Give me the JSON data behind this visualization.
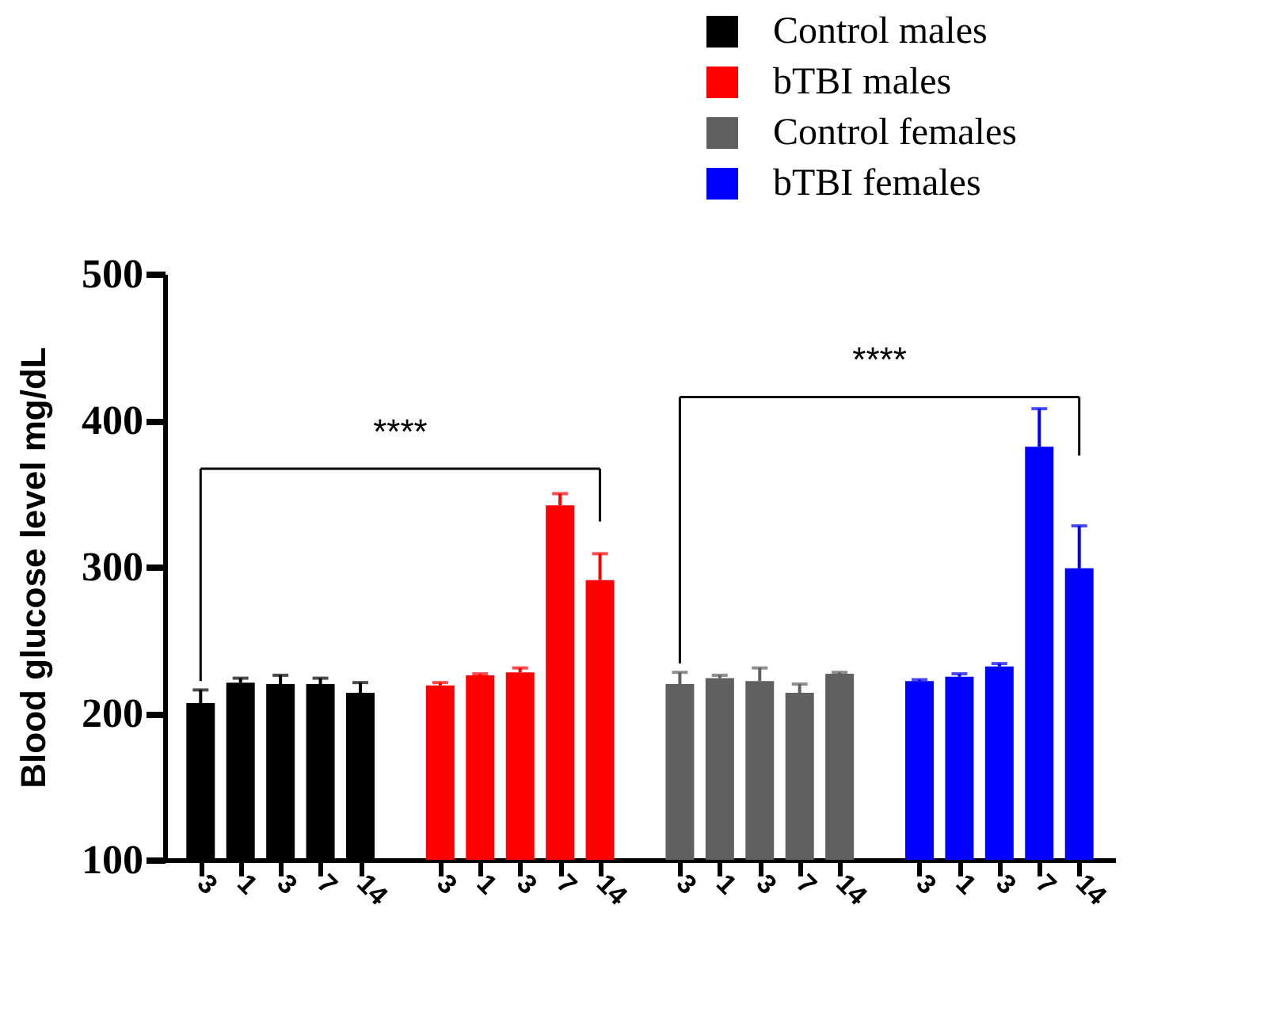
{
  "chart_data": {
    "type": "bar",
    "ylabel": "Blood glucose level mg/dL",
    "categories": [
      "3",
      "1",
      "3",
      "7",
      "14",
      null,
      "3",
      "1",
      "3",
      "7",
      "14",
      null,
      "3",
      "1",
      "3",
      "7",
      "14",
      null,
      "3",
      "1",
      "3",
      "7",
      "14"
    ],
    "series": [
      {
        "name": "Control males",
        "color": "#000000",
        "values": [
          207,
          221,
          220,
          220,
          214,
          null,
          null,
          null,
          null,
          null,
          null,
          null,
          null,
          null,
          null,
          null,
          null,
          null,
          null,
          null,
          null,
          null,
          null
        ],
        "errors": [
          [
            207,
            216
          ],
          [
            221,
            224
          ],
          [
            220,
            226
          ],
          [
            220,
            224
          ],
          [
            214,
            221
          ],
          null,
          null,
          null,
          null,
          null,
          null,
          null,
          null,
          null,
          null,
          null,
          null,
          null,
          null,
          null,
          null,
          null,
          null
        ]
      },
      {
        "name": "bTBI males",
        "color": "#ff0000",
        "values": [
          null,
          null,
          null,
          null,
          null,
          null,
          219,
          226,
          228,
          342,
          291,
          null,
          null,
          null,
          null,
          null,
          null,
          null,
          null,
          null,
          null,
          null,
          null
        ],
        "errors": [
          null,
          null,
          null,
          null,
          null,
          null,
          [
            219,
            221
          ],
          [
            226,
            227
          ],
          [
            228,
            231
          ],
          [
            342,
            350
          ],
          [
            291,
            309
          ],
          null,
          null,
          null,
          null,
          null,
          null,
          null,
          null,
          null,
          null,
          null,
          null
        ]
      },
      {
        "name": "Control females",
        "color": "#606060",
        "values": [
          null,
          null,
          null,
          null,
          null,
          null,
          null,
          null,
          null,
          null,
          null,
          null,
          220,
          224,
          222,
          214,
          227,
          null,
          null,
          null,
          null,
          null,
          null
        ],
        "errors": [
          null,
          null,
          null,
          null,
          null,
          null,
          null,
          null,
          null,
          null,
          null,
          null,
          [
            220,
            228
          ],
          [
            224,
            226
          ],
          [
            222,
            231
          ],
          [
            214,
            220
          ],
          [
            227,
            228
          ],
          null,
          null,
          null,
          null,
          null,
          null
        ]
      },
      {
        "name": "bTBI females",
        "color": "#0000ff",
        "values": [
          null,
          null,
          null,
          null,
          null,
          null,
          null,
          null,
          null,
          null,
          null,
          null,
          null,
          null,
          null,
          null,
          null,
          null,
          222,
          225,
          232,
          382,
          299
        ],
        "errors": [
          null,
          null,
          null,
          null,
          null,
          null,
          null,
          null,
          null,
          null,
          null,
          null,
          null,
          null,
          null,
          null,
          null,
          null,
          [
            222,
            223
          ],
          [
            225,
            227
          ],
          [
            232,
            234
          ],
          [
            382,
            408
          ],
          [
            299,
            328
          ]
        ]
      }
    ],
    "ylim": [
      100,
      500
    ],
    "yticks": [
      100,
      200,
      300,
      400,
      500
    ],
    "annotations": [
      "****",
      "****"
    ],
    "legend": "top right",
    "grid": false
  }
}
